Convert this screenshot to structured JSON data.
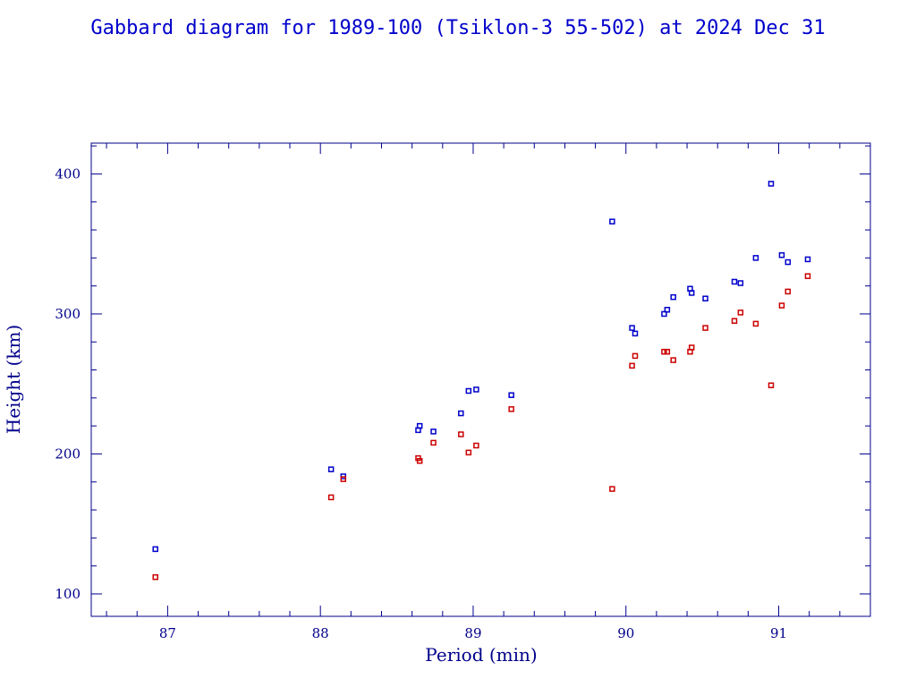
{
  "colors": {
    "axis": "#00008b",
    "apogee": "#0000cc",
    "perigee": "#cc0000",
    "background": "#ffffff"
  },
  "chart_data": {
    "type": "scatter",
    "title": "Gabbard diagram for 1989-100 (Tsiklon-3 55-502) at 2024 Dec 31",
    "xlabel": "Period (min)",
    "ylabel": "Height (km)",
    "xlim": [
      86.5,
      91.6
    ],
    "ylim": [
      84,
      422
    ],
    "xticks": [
      87,
      88,
      89,
      90,
      91
    ],
    "yticks": [
      100,
      200,
      300,
      400
    ],
    "x_minor_step": 0.2,
    "y_minor_step": 20,
    "grid": false,
    "series": [
      {
        "color": "#0000cc",
        "points": [
          [
            86.92,
            132
          ],
          [
            88.07,
            189
          ],
          [
            88.15,
            184
          ],
          [
            88.64,
            217
          ],
          [
            88.65,
            220
          ],
          [
            88.74,
            216
          ],
          [
            88.92,
            229
          ],
          [
            88.97,
            245
          ],
          [
            89.02,
            246
          ],
          [
            89.25,
            242
          ],
          [
            89.91,
            366
          ],
          [
            90.04,
            290
          ],
          [
            90.06,
            286
          ],
          [
            90.25,
            300
          ],
          [
            90.27,
            303
          ],
          [
            90.31,
            312
          ],
          [
            90.42,
            318
          ],
          [
            90.43,
            315
          ],
          [
            90.52,
            311
          ],
          [
            90.71,
            323
          ],
          [
            90.75,
            322
          ],
          [
            90.85,
            340
          ],
          [
            90.95,
            393
          ],
          [
            91.02,
            342
          ],
          [
            91.06,
            337
          ],
          [
            91.19,
            339
          ]
        ]
      },
      {
        "color": "#cc0000",
        "points": [
          [
            86.92,
            112
          ],
          [
            88.07,
            169
          ],
          [
            88.15,
            182
          ],
          [
            88.64,
            197
          ],
          [
            88.65,
            195
          ],
          [
            88.74,
            208
          ],
          [
            88.92,
            214
          ],
          [
            88.97,
            201
          ],
          [
            89.02,
            206
          ],
          [
            89.25,
            232
          ],
          [
            89.91,
            175
          ],
          [
            90.04,
            263
          ],
          [
            90.06,
            270
          ],
          [
            90.25,
            273
          ],
          [
            90.27,
            273
          ],
          [
            90.31,
            267
          ],
          [
            90.42,
            273
          ],
          [
            90.43,
            276
          ],
          [
            90.52,
            290
          ],
          [
            90.71,
            295
          ],
          [
            90.75,
            301
          ],
          [
            90.85,
            293
          ],
          [
            90.95,
            249
          ],
          [
            91.02,
            306
          ],
          [
            91.06,
            316
          ],
          [
            91.19,
            327
          ]
        ]
      }
    ]
  }
}
